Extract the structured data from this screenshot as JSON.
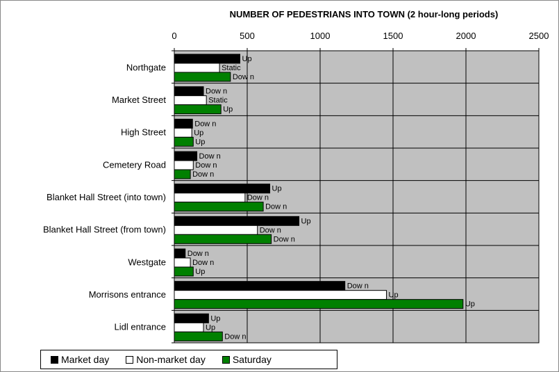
{
  "chart_data": {
    "type": "bar",
    "orientation": "horizontal",
    "title": "NUMBER OF PEDESTRIANS INTO TOWN (2 hour-long periods)",
    "xlabel": "",
    "ylabel": "",
    "xlim": [
      0,
      2500
    ],
    "x_ticks": [
      "0",
      "500",
      "1000",
      "1500",
      "2000",
      "2500"
    ],
    "grid": true,
    "axis_position": "top",
    "plot_background": "#c0c0c0",
    "legend_position": "bottom",
    "categories": [
      "Northgate",
      "Market Street",
      "High Street",
      "Cemetery Road",
      "Blanket Hall Street (into town)",
      "Blanket Hall Street (from town)",
      "Westgate",
      "Morrisons entrance",
      "Lidl entrance"
    ],
    "series": [
      {
        "name": "Market day",
        "color": "#000000",
        "values": [
          450,
          200,
          125,
          155,
          655,
          855,
          75,
          1170,
          235
        ],
        "labels": [
          "Up",
          "Dow n",
          "Dow n",
          "Dow n",
          "Up",
          "Up",
          "Dow n",
          "Dow n",
          "Up"
        ]
      },
      {
        "name": "Non-market day",
        "color": "#ffffff",
        "values": [
          310,
          220,
          120,
          130,
          485,
          570,
          110,
          1455,
          200
        ],
        "labels": [
          "Static",
          "Static",
          "Up",
          "Dow n",
          "Dow n",
          "Dow n",
          "Dow n",
          "Up",
          "Up"
        ]
      },
      {
        "name": "Saturday",
        "color": "#008000",
        "values": [
          385,
          320,
          130,
          110,
          610,
          665,
          130,
          1980,
          330
        ],
        "labels": [
          "Dow n",
          "Up",
          "Up",
          "Dow n",
          "Dow n",
          "Dow n",
          "Up",
          "Up",
          "Dow n"
        ]
      }
    ]
  }
}
